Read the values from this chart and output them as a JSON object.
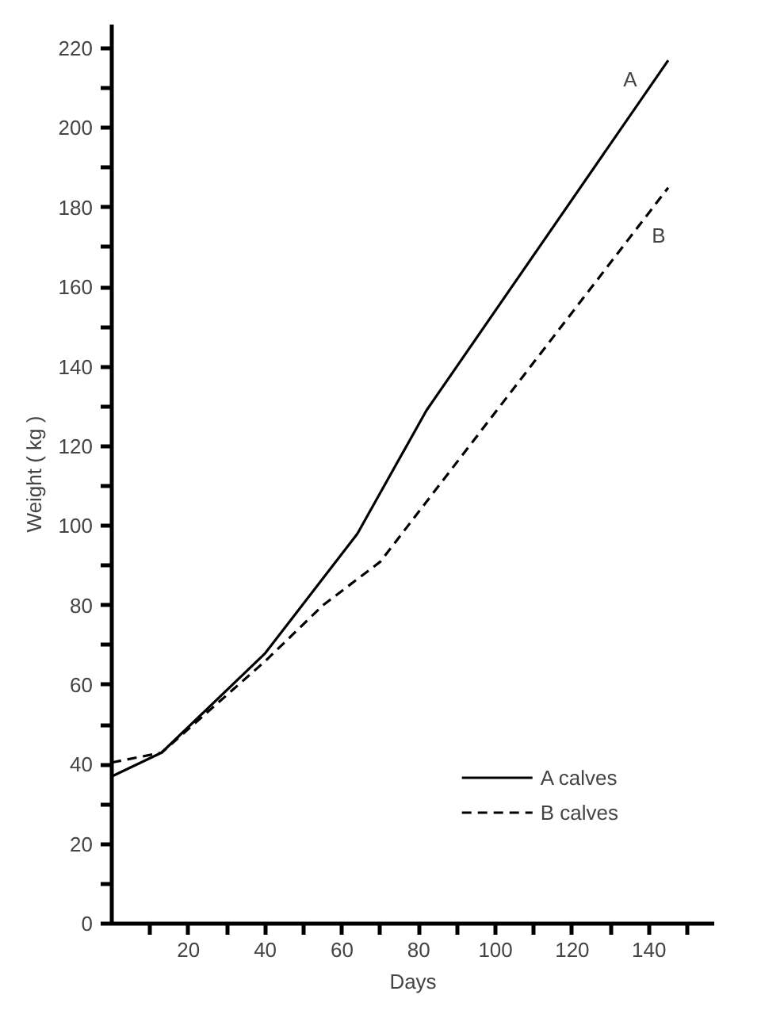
{
  "chart_data": {
    "type": "line",
    "xlabel": "Days",
    "ylabel": "Weight ( kg )",
    "series": [
      {
        "name": "A calves",
        "color": "#000000",
        "line_style": "solid",
        "x": [
          0,
          13,
          40,
          64,
          82,
          145
        ],
        "values": [
          37,
          43,
          68,
          98,
          129,
          217
        ]
      },
      {
        "name": "B calves",
        "color": "#000000",
        "line_style": "dashed",
        "x": [
          0,
          13,
          40,
          55,
          70,
          145
        ],
        "values": [
          40.5,
          43,
          66,
          80,
          91,
          185
        ]
      }
    ],
    "annotations": [
      "A",
      "B"
    ],
    "xlim": [
      0,
      157
    ],
    "ylim": [
      0,
      226
    ],
    "xticks": [
      {
        "value": 10,
        "label": null
      },
      20,
      {
        "value": 30,
        "label": null
      },
      40,
      {
        "value": 50,
        "label": null
      },
      60,
      {
        "value": 70,
        "label": null
      },
      80,
      {
        "value": 90,
        "label": null
      },
      100,
      {
        "value": 110,
        "label": null
      },
      120,
      {
        "value": 130,
        "label": null
      },
      140,
      {
        "value": 150,
        "label": null
      }
    ],
    "yticks": [
      0,
      {
        "value": 10,
        "label": null
      },
      20,
      {
        "value": 30,
        "label": null
      },
      40,
      {
        "value": 50,
        "label": null
      },
      60,
      {
        "value": 70,
        "label": null
      },
      80,
      {
        "value": 90,
        "label": null
      },
      100,
      {
        "value": 110,
        "label": null
      },
      120,
      {
        "value": 130,
        "label": null
      },
      140,
      {
        "value": 150,
        "label": null
      },
      160,
      {
        "value": 170,
        "label": null
      },
      180,
      {
        "value": 190,
        "label": null
      },
      200,
      {
        "value": 210,
        "label": null
      },
      220
    ],
    "grid": false,
    "legend": "bottom right",
    "marker": "none"
  }
}
